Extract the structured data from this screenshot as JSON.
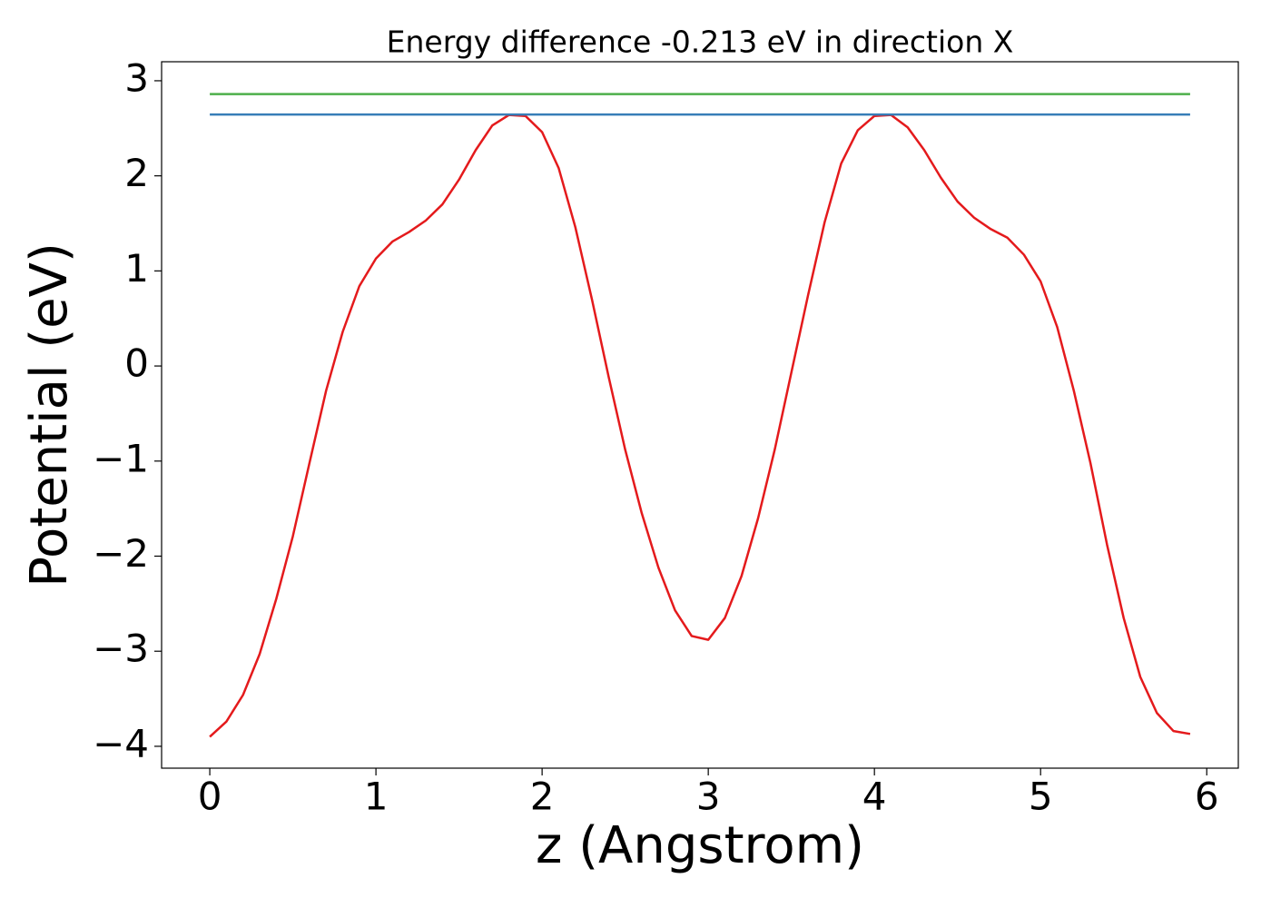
{
  "chart_data": {
    "type": "line",
    "title": "Energy difference -0.213 eV in direction X",
    "xlabel": "z (Angstrom)",
    "ylabel": "Potential (eV)",
    "xlim": [
      -0.29,
      6.19
    ],
    "ylim": [
      -4.23,
      3.2
    ],
    "xticks": [
      0,
      1,
      2,
      3,
      4,
      5,
      6
    ],
    "yticks": [
      {
        "value": -4,
        "label": "−4"
      },
      {
        "value": -3,
        "label": "−3"
      },
      {
        "value": -2,
        "label": "−2"
      },
      {
        "value": -1,
        "label": "−1"
      },
      0,
      1,
      2,
      3
    ],
    "grid": false,
    "series": [
      {
        "color": "#e41a1c",
        "x": [
          0,
          0.1,
          0.2,
          0.3,
          0.4,
          0.5,
          0.6,
          0.7,
          0.8,
          0.9,
          1.0,
          1.1,
          1.2,
          1.3,
          1.4,
          1.5,
          1.6,
          1.7,
          1.8,
          1.9,
          2.0,
          2.1,
          2.2,
          2.3,
          2.4,
          2.5,
          2.6,
          2.7,
          2.8,
          2.9,
          3.0,
          3.1,
          3.2,
          3.3,
          3.4,
          3.5,
          3.6,
          3.7,
          3.8,
          3.9,
          4.0,
          4.1,
          4.2,
          4.3,
          4.4,
          4.5,
          4.6,
          4.7,
          4.8,
          4.9,
          5.0,
          5.1,
          5.2,
          5.3,
          5.4,
          5.5,
          5.6,
          5.7,
          5.8,
          5.9
        ],
        "values": [
          -3.9,
          -3.74,
          -3.46,
          -3.03,
          -2.45,
          -1.79,
          -1.02,
          -0.26,
          0.36,
          0.84,
          1.13,
          1.31,
          1.41,
          1.53,
          1.7,
          1.96,
          2.27,
          2.53,
          2.64,
          2.63,
          2.46,
          2.08,
          1.46,
          0.7,
          -0.11,
          -0.88,
          -1.55,
          -2.12,
          -2.57,
          -2.84,
          -2.88,
          -2.65,
          -2.21,
          -1.6,
          -0.88,
          -0.07,
          0.74,
          1.51,
          2.13,
          2.48,
          2.63,
          2.64,
          2.51,
          2.27,
          1.98,
          1.73,
          1.56,
          1.44,
          1.35,
          1.17,
          0.89,
          0.41,
          -0.26,
          -1.02,
          -1.88,
          -2.65,
          -3.27,
          -3.65,
          -3.84,
          -3.87
        ]
      },
      {
        "color": "#377eb8",
        "x": [
          0,
          5.9
        ],
        "values": [
          2.645,
          2.645
        ]
      },
      {
        "color": "#4daf4a",
        "x": [
          0,
          5.9
        ],
        "values": [
          2.86,
          2.86
        ]
      }
    ]
  }
}
